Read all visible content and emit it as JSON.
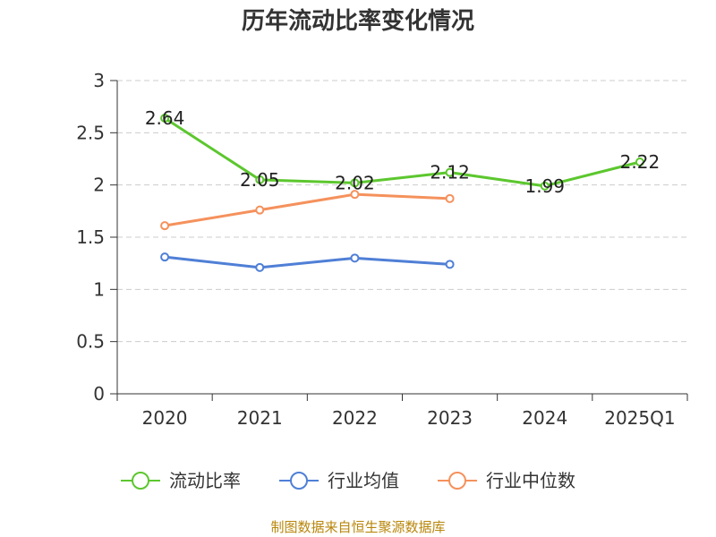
{
  "chart_data": {
    "type": "line",
    "title": "历年流动比率变化情况",
    "categories": [
      "2020",
      "2021",
      "2022",
      "2023",
      "2024",
      "2025Q1"
    ],
    "ylim": [
      0,
      3
    ],
    "yticks": [
      "0",
      "0.5",
      "1",
      "1.5",
      "2",
      "2.5",
      "3"
    ],
    "grid": true,
    "legend_position": "bottom",
    "series": [
      {
        "name": "流动比率",
        "color": "#5cc72e",
        "values": [
          2.64,
          2.05,
          2.02,
          2.12,
          1.99,
          2.22
        ],
        "labels": [
          "2.64",
          "2.05",
          "2.02",
          "2.12",
          "1.99",
          "2.22"
        ]
      },
      {
        "name": "行业均值",
        "color": "#4f7fd6",
        "values": [
          1.31,
          1.21,
          1.3,
          1.24,
          null,
          null
        ]
      },
      {
        "name": "行业中位数",
        "color": "#f5915c",
        "values": [
          1.61,
          1.76,
          1.91,
          1.87,
          null,
          null
        ]
      }
    ]
  },
  "source": "制图数据来自恒生聚源数据库"
}
